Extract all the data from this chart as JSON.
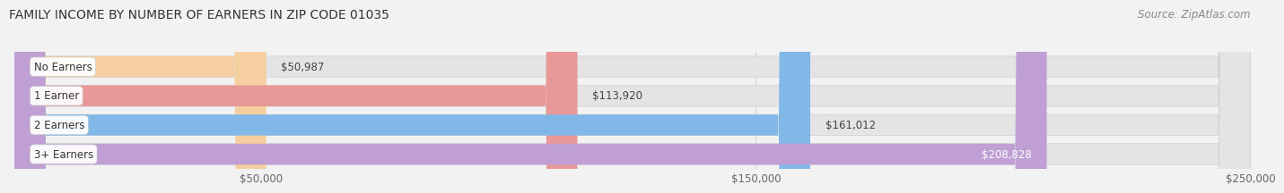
{
  "title": "FAMILY INCOME BY NUMBER OF EARNERS IN ZIP CODE 01035",
  "source": "Source: ZipAtlas.com",
  "categories": [
    "No Earners",
    "1 Earner",
    "2 Earners",
    "3+ Earners"
  ],
  "values": [
    50987,
    113920,
    161012,
    208828
  ],
  "bar_colors": [
    "#f5cfa0",
    "#e89898",
    "#82b8e8",
    "#bf9fd4"
  ],
  "value_labels": [
    "$50,987",
    "$113,920",
    "$161,012",
    "$208,828"
  ],
  "value_label_inside": [
    false,
    false,
    false,
    true
  ],
  "xmin": 0,
  "xmax": 250000,
  "xticks": [
    50000,
    150000,
    250000
  ],
  "xtick_labels": [
    "$50,000",
    "$150,000",
    "$250,000"
  ],
  "background_color": "#f2f2f2",
  "bar_bg_color": "#e4e4e4",
  "title_fontsize": 10,
  "source_fontsize": 8.5,
  "bar_fontsize": 8.5,
  "tick_fontsize": 8.5
}
